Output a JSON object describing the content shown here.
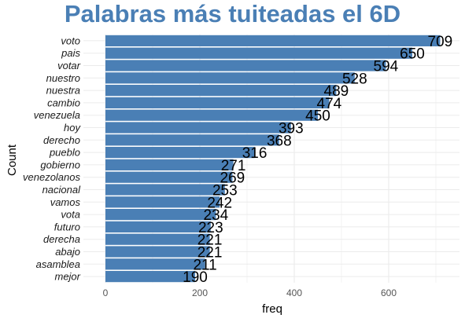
{
  "chart_data": {
    "type": "bar",
    "orientation": "horizontal",
    "title": "Palabras más tuiteadas el 6D",
    "xlabel": "freq",
    "ylabel": "Count",
    "categories": [
      "voto",
      "pais",
      "votar",
      "nuestro",
      "nuestra",
      "cambio",
      "venezuela",
      "hoy",
      "derecho",
      "pueblo",
      "gobierno",
      "venezolanos",
      "nacional",
      "vamos",
      "vota",
      "futuro",
      "derecha",
      "abajo",
      "asamblea",
      "mejor"
    ],
    "values": [
      709,
      650,
      594,
      528,
      489,
      474,
      450,
      393,
      368,
      316,
      271,
      269,
      253,
      242,
      234,
      223,
      221,
      221,
      211,
      190
    ],
    "xlim": [
      0,
      740
    ],
    "xticks": [
      0,
      200,
      400,
      600
    ],
    "grid": true,
    "legend": "none",
    "colors": {
      "bar": "#4a7fb5",
      "title": "#4a7fb5",
      "grid": "#ebebeb"
    }
  }
}
